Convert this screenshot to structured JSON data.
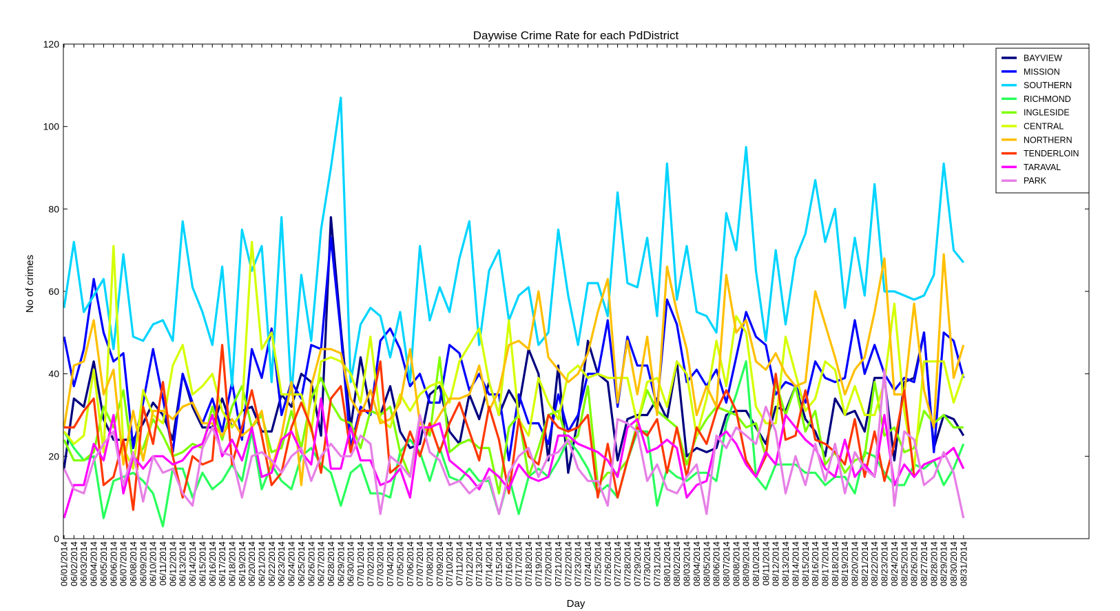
{
  "chart_data": {
    "type": "line",
    "title": "Daywise Crime Rate for each PdDistrict",
    "xlabel": "Day",
    "ylabel": "No of crimes",
    "ylim": [
      0,
      120
    ],
    "yticks": [
      0,
      20,
      40,
      60,
      80,
      100,
      120
    ],
    "legend_position": "top-right",
    "grid": false,
    "x": [
      "06/01/2014",
      "06/02/2014",
      "06/03/2014",
      "06/04/2014",
      "06/05/2014",
      "06/06/2014",
      "06/07/2014",
      "06/08/2014",
      "06/09/2014",
      "06/10/2014",
      "06/11/2014",
      "06/12/2014",
      "06/13/2014",
      "06/14/2014",
      "06/15/2014",
      "06/16/2014",
      "06/17/2014",
      "06/18/2014",
      "06/19/2014",
      "06/20/2014",
      "06/21/2014",
      "06/22/2014",
      "06/23/2014",
      "06/24/2014",
      "06/25/2014",
      "06/26/2014",
      "06/27/2014",
      "06/28/2014",
      "06/29/2014",
      "06/30/2014",
      "07/01/2014",
      "07/02/2014",
      "07/03/2014",
      "07/04/2014",
      "07/05/2014",
      "07/06/2014",
      "07/07/2014",
      "07/08/2014",
      "07/09/2014",
      "07/10/2014",
      "07/11/2014",
      "07/12/2014",
      "07/13/2014",
      "07/14/2014",
      "07/15/2014",
      "07/16/2014",
      "07/17/2014",
      "07/18/2014",
      "07/19/2014",
      "07/20/2014",
      "07/21/2014",
      "07/22/2014",
      "07/23/2014",
      "07/24/2014",
      "07/25/2014",
      "07/26/2014",
      "07/27/2014",
      "07/28/2014",
      "07/29/2014",
      "07/30/2014",
      "07/31/2014",
      "08/01/2014",
      "08/02/2014",
      "08/03/2014",
      "08/04/2014",
      "08/05/2014",
      "08/06/2014",
      "08/07/2014",
      "08/08/2014",
      "08/09/2014",
      "08/10/2014",
      "08/11/2014",
      "08/12/2014",
      "08/13/2014",
      "08/14/2014",
      "08/15/2014",
      "08/16/2014",
      "08/17/2014",
      "08/18/2014",
      "08/19/2014",
      "08/20/2014",
      "08/21/2014",
      "08/22/2014",
      "08/23/2014",
      "08/24/2014",
      "08/25/2014",
      "08/26/2014",
      "08/27/2014",
      "08/28/2014",
      "08/29/2014",
      "08/30/2014",
      "08/31/2014"
    ],
    "series": [
      {
        "name": "BAYVIEW",
        "color": "#00007f",
        "values": [
          17,
          34,
          32,
          43,
          29,
          24,
          24,
          24,
          28,
          33,
          30,
          24,
          40,
          32,
          27,
          27,
          34,
          27,
          31,
          32,
          26,
          26,
          35,
          32,
          40,
          38,
          25,
          78,
          51,
          27,
          44,
          31,
          30,
          37,
          26,
          22,
          23,
          35,
          37,
          26,
          23,
          35,
          29,
          38,
          30,
          36,
          32,
          46,
          40,
          19,
          42,
          16,
          29,
          48,
          40,
          38,
          19,
          29,
          30,
          30,
          34,
          29,
          43,
          20,
          22,
          21,
          22,
          30,
          31,
          31,
          27,
          23,
          32,
          31,
          37,
          29,
          26,
          20,
          34,
          30,
          31,
          26,
          39,
          39,
          19,
          38,
          39,
          50,
          22,
          30,
          29,
          25
        ]
      },
      {
        "name": "MISSION",
        "color": "#0000ff",
        "values": [
          49,
          37,
          46,
          63,
          50,
          43,
          45,
          22,
          33,
          46,
          34,
          21,
          40,
          33,
          28,
          34,
          26,
          38,
          24,
          46,
          39,
          51,
          30,
          38,
          34,
          47,
          46,
          73,
          50,
          22,
          32,
          30,
          48,
          51,
          46,
          37,
          40,
          33,
          33,
          47,
          45,
          36,
          40,
          35,
          35,
          19,
          35,
          28,
          28,
          23,
          35,
          26,
          30,
          40,
          40,
          53,
          32,
          49,
          42,
          42,
          32,
          58,
          52,
          38,
          41,
          37,
          41,
          33,
          44,
          55,
          49,
          47,
          35,
          38,
          37,
          33,
          43,
          39,
          38,
          39,
          53,
          40,
          47,
          40,
          36,
          39,
          38,
          50,
          21,
          50,
          48,
          39
        ]
      },
      {
        "name": "SOUTHERN",
        "color": "#00d4ff",
        "values": [
          56,
          72,
          55,
          59,
          63,
          46,
          69,
          49,
          48,
          52,
          53,
          48,
          77,
          61,
          55,
          47,
          66,
          37,
          75,
          65,
          71,
          38,
          78,
          35,
          64,
          48,
          75,
          90,
          107,
          38,
          52,
          56,
          54,
          44,
          55,
          38,
          71,
          53,
          61,
          55,
          68,
          77,
          47,
          65,
          70,
          53,
          59,
          61,
          47,
          50,
          75,
          59,
          47,
          62,
          62,
          54,
          84,
          62,
          61,
          73,
          54,
          91,
          58,
          71,
          55,
          54,
          50,
          79,
          70,
          95,
          65,
          48,
          70,
          52,
          68,
          74,
          87,
          72,
          80,
          56,
          73,
          59,
          86,
          60,
          60,
          59,
          58,
          59,
          64,
          91,
          70,
          67
        ]
      },
      {
        "name": "RICHMOND",
        "color": "#29ff5c",
        "values": [
          26,
          22,
          19,
          20,
          5,
          14,
          15,
          16,
          14,
          11,
          3,
          17,
          17,
          10,
          16,
          12,
          14,
          18,
          14,
          26,
          12,
          18,
          14,
          12,
          20,
          22,
          18,
          16,
          8,
          16,
          18,
          11,
          11,
          10,
          21,
          24,
          21,
          14,
          22,
          15,
          14,
          17,
          14,
          14,
          6,
          15,
          6,
          15,
          17,
          15,
          19,
          24,
          21,
          17,
          11,
          13,
          10,
          19,
          26,
          26,
          8,
          17,
          15,
          14,
          16,
          16,
          14,
          28,
          35,
          43,
          15,
          12,
          18,
          18,
          18,
          16,
          16,
          13,
          15,
          15,
          11,
          21,
          20,
          16,
          13,
          13,
          18,
          17,
          19,
          13,
          17,
          23
        ]
      },
      {
        "name": "INGLESIDE",
        "color": "#7fff00",
        "values": [
          24,
          19,
          19,
          21,
          32,
          27,
          36,
          18,
          22,
          29,
          25,
          20,
          21,
          23,
          22,
          32,
          24,
          32,
          37,
          27,
          30,
          21,
          22,
          31,
          22,
          34,
          39,
          33,
          29,
          28,
          22,
          31,
          30,
          32,
          21,
          15,
          29,
          25,
          44,
          21,
          23,
          24,
          22,
          22,
          11,
          27,
          30,
          15,
          22,
          30,
          31,
          23,
          25,
          37,
          13,
          16,
          16,
          19,
          28,
          36,
          31,
          29,
          27,
          18,
          25,
          29,
          32,
          31,
          30,
          27,
          28,
          20,
          38,
          30,
          37,
          26,
          31,
          18,
          21,
          16,
          19,
          20,
          38,
          25,
          27,
          21,
          22,
          31,
          28,
          30,
          27,
          27
        ]
      },
      {
        "name": "CENTRAL",
        "color": "#d4ff00",
        "values": [
          26,
          23,
          25,
          41,
          21,
          71,
          22,
          17,
          36,
          30,
          28,
          42,
          47,
          35,
          37,
          40,
          31,
          27,
          31,
          72,
          46,
          50,
          35,
          35,
          35,
          26,
          43,
          44,
          43,
          40,
          33,
          49,
          29,
          27,
          35,
          31,
          35,
          37,
          38,
          33,
          43,
          47,
          51,
          38,
          30,
          53,
          29,
          25,
          39,
          33,
          29,
          40,
          42,
          39,
          40,
          39,
          39,
          39,
          28,
          38,
          39,
          32,
          43,
          40,
          25,
          34,
          48,
          37,
          54,
          50,
          32,
          28,
          28,
          49,
          40,
          31,
          34,
          43,
          41,
          30,
          37,
          30,
          30,
          38,
          57,
          31,
          17,
          43,
          43,
          43,
          33,
          40
        ]
      },
      {
        "name": "NORTHERN",
        "color": "#ffbf00",
        "values": [
          27,
          42,
          43,
          53,
          35,
          41,
          18,
          31,
          19,
          31,
          31,
          29,
          32,
          33,
          28,
          28,
          25,
          29,
          25,
          27,
          31,
          17,
          25,
          38,
          13,
          37,
          46,
          46,
          45,
          34,
          30,
          36,
          28,
          29,
          33,
          46,
          28,
          26,
          30,
          34,
          34,
          35,
          42,
          31,
          36,
          47,
          48,
          46,
          60,
          44,
          41,
          38,
          40,
          45,
          55,
          63,
          33,
          48,
          35,
          49,
          30,
          66,
          55,
          46,
          30,
          37,
          32,
          64,
          50,
          53,
          43,
          41,
          45,
          40,
          37,
          38,
          60,
          52,
          44,
          35,
          41,
          44,
          55,
          68,
          35,
          35,
          57,
          36,
          27,
          69,
          39,
          47
        ]
      },
      {
        "name": "TENDERLOIN",
        "color": "#ff3800",
        "values": [
          27,
          27,
          31,
          34,
          13,
          15,
          24,
          7,
          32,
          23,
          38,
          20,
          10,
          20,
          18,
          19,
          47,
          18,
          27,
          36,
          25,
          13,
          16,
          27,
          33,
          27,
          16,
          34,
          37,
          21,
          31,
          31,
          43,
          16,
          18,
          26,
          20,
          28,
          21,
          28,
          33,
          26,
          19,
          32,
          24,
          11,
          29,
          20,
          18,
          30,
          27,
          26,
          27,
          30,
          10,
          23,
          10,
          19,
          27,
          25,
          29,
          16,
          27,
          15,
          27,
          23,
          31,
          36,
          31,
          19,
          15,
          20,
          40,
          24,
          25,
          36,
          24,
          23,
          21,
          18,
          29,
          15,
          26,
          14,
          23,
          36,
          15,
          18,
          19,
          20,
          22,
          17
        ]
      },
      {
        "name": "TARAVAL",
        "color": "#ff00ff",
        "values": [
          5,
          13,
          13,
          23,
          19,
          30,
          11,
          20,
          17,
          20,
          20,
          18,
          19,
          22,
          23,
          30,
          20,
          24,
          19,
          27,
          15,
          16,
          24,
          26,
          21,
          18,
          34,
          17,
          17,
          27,
          19,
          19,
          13,
          14,
          17,
          10,
          27,
          27,
          28,
          19,
          17,
          15,
          12,
          17,
          15,
          12,
          18,
          15,
          14,
          15,
          25,
          25,
          23,
          22,
          21,
          19,
          15,
          27,
          29,
          21,
          22,
          24,
          22,
          10,
          13,
          14,
          24,
          26,
          23,
          18,
          15,
          21,
          18,
          30,
          27,
          24,
          22,
          17,
          15,
          24,
          15,
          18,
          15,
          30,
          13,
          18,
          15,
          18,
          19,
          20,
          22,
          17
        ]
      },
      {
        "name": "PARK",
        "color": "#e67fe6",
        "values": [
          17,
          12,
          11,
          19,
          23,
          26,
          13,
          21,
          9,
          20,
          16,
          17,
          11,
          8,
          22,
          27,
          21,
          20,
          10,
          20,
          21,
          19,
          16,
          20,
          22,
          14,
          20,
          23,
          20,
          20,
          25,
          23,
          6,
          20,
          18,
          15,
          30,
          21,
          19,
          13,
          14,
          11,
          13,
          15,
          6,
          16,
          20,
          22,
          15,
          20,
          21,
          24,
          17,
          14,
          14,
          8,
          29,
          28,
          26,
          14,
          18,
          12,
          11,
          15,
          18,
          6,
          25,
          22,
          27,
          25,
          23,
          32,
          26,
          11,
          20,
          13,
          23,
          14,
          23,
          11,
          21,
          17,
          15,
          41,
          8,
          26,
          24,
          13,
          15,
          21,
          16,
          5
        ]
      }
    ]
  }
}
